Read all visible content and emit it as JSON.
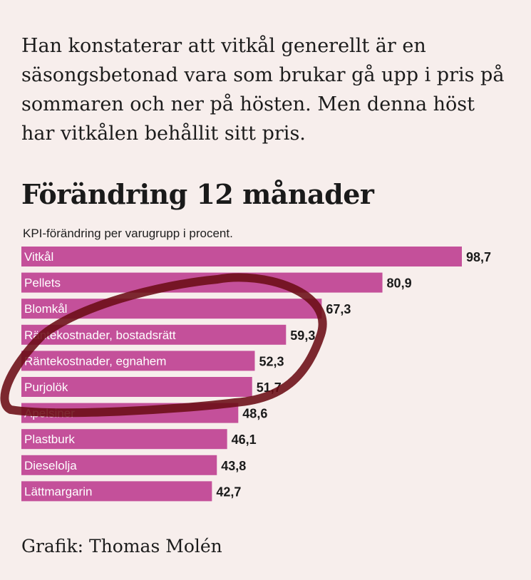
{
  "article": {
    "paragraph": "Han konstaterar att vitkål generellt är en säsongsbetonad vara som brukar gå upp i pris på sommaren och ner på hösten. Men denna höst har vitkålen behållit sitt pris.",
    "credit": "Grafik: Thomas Molén"
  },
  "colors": {
    "bar": "#c4509a",
    "background": "#f7eeec",
    "annotation_circle": "#6b0d14"
  },
  "chart_data": {
    "type": "bar",
    "orientation": "horizontal",
    "title": "Förändring 12 månader",
    "subtitle": "KPI-förändring per varugrupp i procent.",
    "xlabel": "",
    "ylabel": "",
    "categories": [
      "Vitkål",
      "Pellets",
      "Blomkål",
      "Räntekostnader, bostadsrätt",
      "Räntekostnader, egnahem",
      "Purjolök",
      "Apelsiner",
      "Plastburk",
      "Dieselolja",
      "Lättmargarin"
    ],
    "values": [
      98.7,
      80.9,
      67.3,
      59.3,
      52.3,
      51.7,
      48.6,
      46.1,
      43.8,
      42.7
    ],
    "value_labels": [
      "98,7",
      "80,9",
      "67,3",
      "59,3",
      "52,3",
      "51,7",
      "48,6",
      "46,1",
      "43,8",
      "42,7"
    ],
    "grid": false,
    "legend": "none"
  }
}
